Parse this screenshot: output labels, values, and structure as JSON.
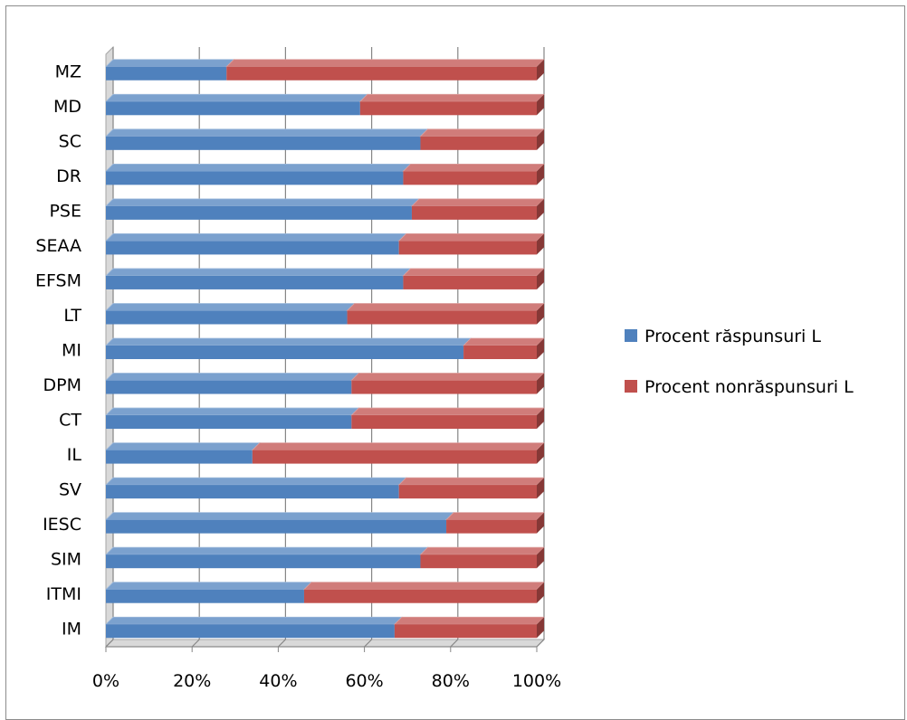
{
  "chart_data": {
    "type": "bar",
    "orientation": "horizontal",
    "stacked": "percent",
    "categories": [
      "IM",
      "ITMI",
      "SIM",
      "IESC",
      "SV",
      "IL",
      "CT",
      "DPM",
      "MI",
      "LT",
      "EFSM",
      "SEAA",
      "PSE",
      "DR",
      "SC",
      "MD",
      "MZ"
    ],
    "series": [
      {
        "name": "Procent răspunsuri L",
        "color": "#4f81bd",
        "values": [
          67,
          46,
          73,
          79,
          68,
          34,
          57,
          57,
          83,
          56,
          69,
          68,
          71,
          69,
          73,
          59,
          28
        ]
      },
      {
        "name": "Procent nonrăspunsuri L",
        "color": "#c0504d",
        "values": [
          33,
          54,
          27,
          21,
          32,
          66,
          43,
          43,
          17,
          44,
          31,
          32,
          29,
          31,
          27,
          41,
          72
        ]
      }
    ],
    "x_ticks": [
      "0%",
      "20%",
      "40%",
      "60%",
      "80%",
      "100%"
    ],
    "xlim": [
      0,
      100
    ],
    "grid": true,
    "legend_position": "right"
  }
}
